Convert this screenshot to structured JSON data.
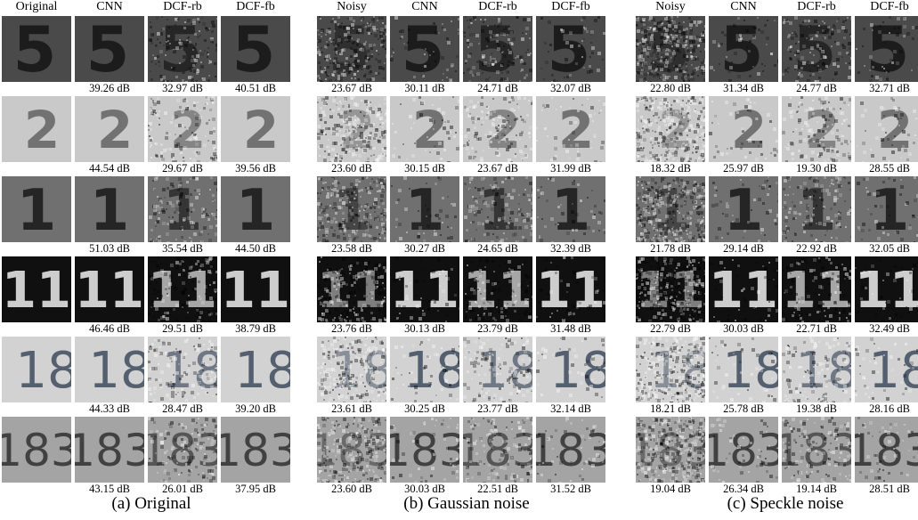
{
  "panels": [
    {
      "id": "a",
      "caption": "(a) Original",
      "columns": [
        "Original",
        "CNN",
        "DCF-rb",
        "DCF-fb"
      ],
      "rows": [
        {
          "digit": "5",
          "psnr": [
            "",
            "39.26 dB",
            "32.97 dB",
            "40.51 dB"
          ]
        },
        {
          "digit": "2",
          "psnr": [
            "",
            "44.54 dB",
            "29.67 dB",
            "39.56 dB"
          ]
        },
        {
          "digit": "1",
          "psnr": [
            "",
            "51.03 dB",
            "35.54 dB",
            "44.50 dB"
          ]
        },
        {
          "digit": "11",
          "psnr": [
            "",
            "46.46 dB",
            "29.51 dB",
            "38.79 dB"
          ]
        },
        {
          "digit": "18",
          "psnr": [
            "",
            "44.33 dB",
            "28.47 dB",
            "39.20 dB"
          ]
        },
        {
          "digit": "183",
          "psnr": [
            "",
            "43.15 dB",
            "26.01 dB",
            "37.95 dB"
          ]
        }
      ]
    },
    {
      "id": "b",
      "caption": "(b) Gaussian noise",
      "columns": [
        "Noisy",
        "CNN",
        "DCF-rb",
        "DCF-fb"
      ],
      "rows": [
        {
          "digit": "5",
          "psnr": [
            "23.67 dB",
            "30.11 dB",
            "24.71 dB",
            "32.07 dB"
          ]
        },
        {
          "digit": "2",
          "psnr": [
            "23.60 dB",
            "30.15 dB",
            "23.67 dB",
            "31.99 dB"
          ]
        },
        {
          "digit": "1",
          "psnr": [
            "23.58 dB",
            "30.27 dB",
            "24.65 dB",
            "32.39 dB"
          ]
        },
        {
          "digit": "11",
          "psnr": [
            "23.76 dB",
            "30.13 dB",
            "23.79 dB",
            "31.48 dB"
          ]
        },
        {
          "digit": "18",
          "psnr": [
            "23.61 dB",
            "30.25 dB",
            "23.77 dB",
            "32.14 dB"
          ]
        },
        {
          "digit": "183",
          "psnr": [
            "23.60 dB",
            "30.03 dB",
            "22.51 dB",
            "31.52 dB"
          ]
        }
      ]
    },
    {
      "id": "c",
      "caption": "(c) Speckle noise",
      "columns": [
        "Noisy",
        "CNN",
        "DCF-rb",
        "DCF-fb"
      ],
      "rows": [
        {
          "digit": "5",
          "psnr": [
            "22.80 dB",
            "31.34 dB",
            "24.77 dB",
            "32.71 dB"
          ]
        },
        {
          "digit": "2",
          "psnr": [
            "18.32 dB",
            "25.97 dB",
            "19.30 dB",
            "28.55 dB"
          ]
        },
        {
          "digit": "1",
          "psnr": [
            "21.78 dB",
            "29.14 dB",
            "22.92 dB",
            "32.05 dB"
          ]
        },
        {
          "digit": "11",
          "psnr": [
            "22.79 dB",
            "30.03 dB",
            "22.71 dB",
            "32.49 dB"
          ]
        },
        {
          "digit": "18",
          "psnr": [
            "18.21 dB",
            "25.78 dB",
            "19.38 dB",
            "28.16 dB"
          ]
        },
        {
          "digit": "183",
          "psnr": [
            "19.04 dB",
            "26.34 dB",
            "19.14 dB",
            "28.51 dB"
          ]
        }
      ]
    }
  ]
}
